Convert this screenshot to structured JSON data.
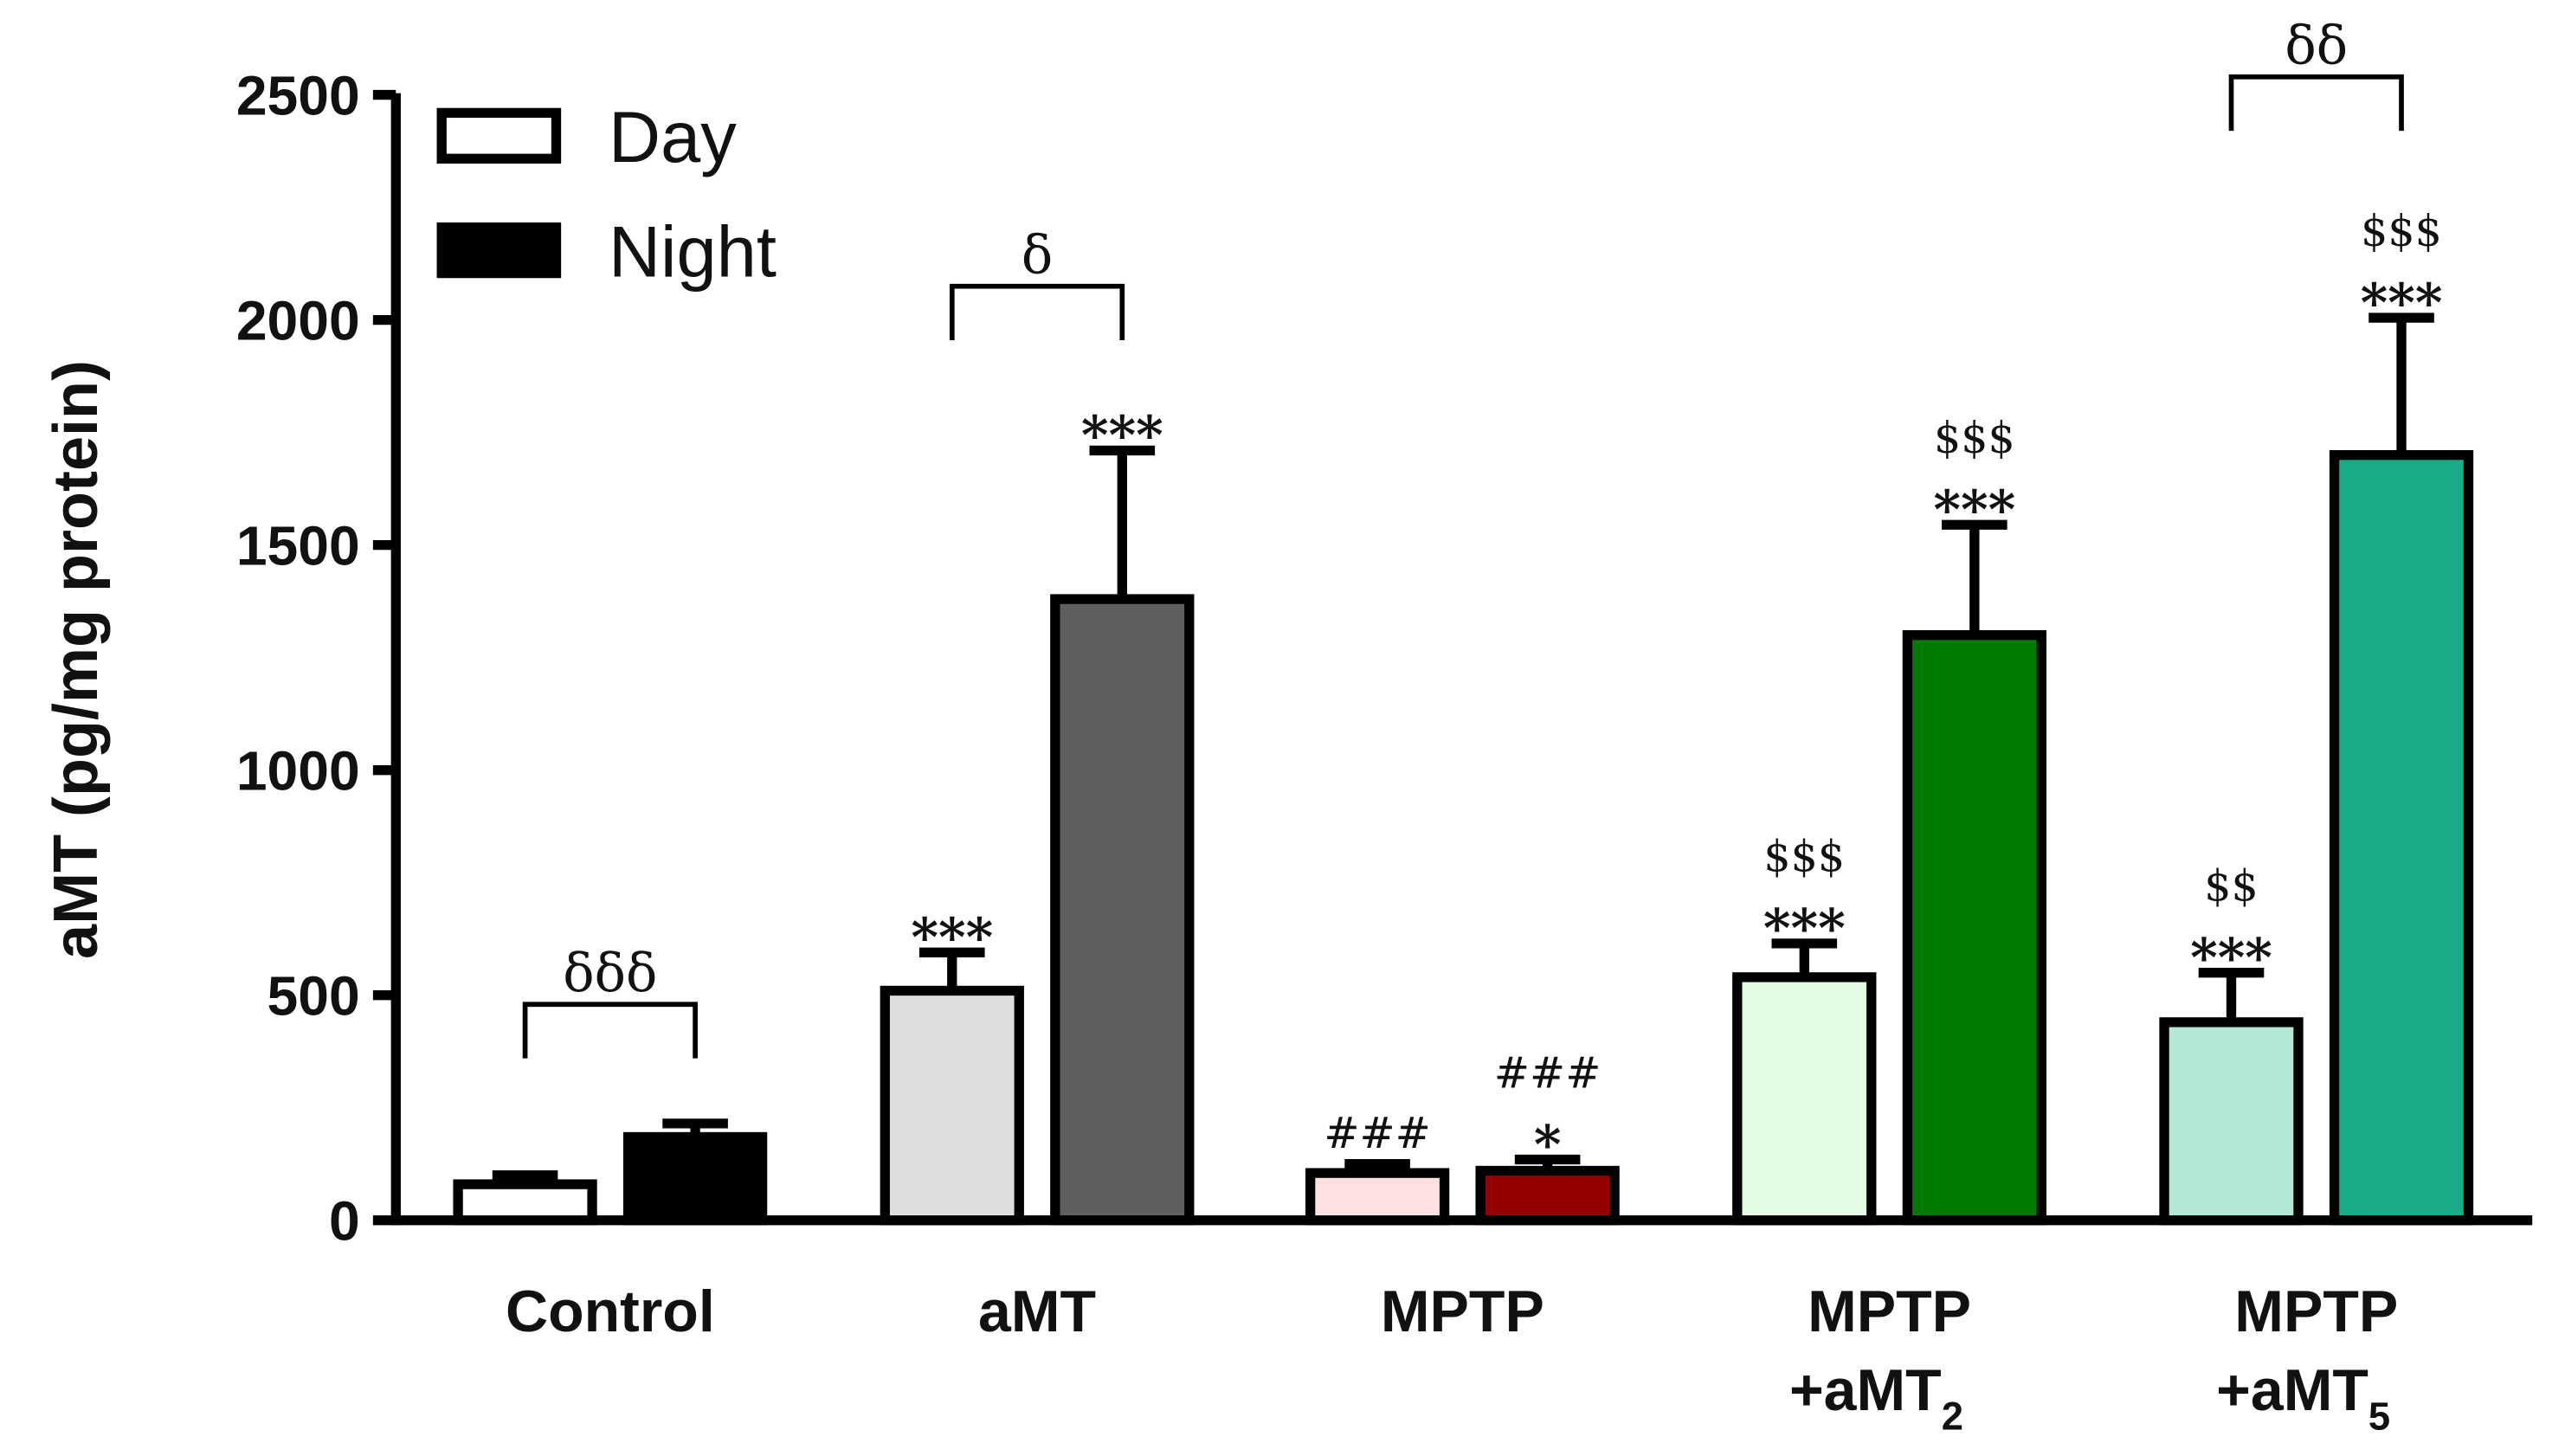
{
  "chart_data": {
    "type": "bar",
    "ylabel": "aMT (pg/mg protein)",
    "ylim": [
      0,
      2500
    ],
    "yticks": [
      "0",
      "500",
      "1000",
      "1500",
      "2000",
      "2500"
    ],
    "ytick_values": [
      0,
      500,
      1000,
      1500,
      2000,
      2500
    ],
    "legend": {
      "placement": "top-left",
      "entries": [
        "Day",
        "Night"
      ]
    },
    "groups": [
      {
        "line1": "Control",
        "line2": "",
        "line2_sub": "",
        "bars": [
          {
            "series": "Day",
            "value": 80,
            "error": 20,
            "color": "#ffffff",
            "marks": []
          },
          {
            "series": "Night",
            "value": 185,
            "error": 30,
            "color": "#000000",
            "marks": []
          }
        ],
        "bracket": "δδδ"
      },
      {
        "line1": "aMT",
        "line2": "",
        "line2_sub": "",
        "bars": [
          {
            "series": "Day",
            "value": 510,
            "error": 85,
            "color": "#dedede",
            "marks": [
              "***"
            ]
          },
          {
            "series": "Night",
            "value": 1380,
            "error": 330,
            "color": "#5f5f5f",
            "marks": [
              "***"
            ]
          }
        ],
        "bracket": "δ"
      },
      {
        "line1": "MPTP",
        "line2": "",
        "line2_sub": "",
        "bars": [
          {
            "series": "Day",
            "value": 105,
            "error": 20,
            "color": "#fde0e0",
            "marks": [
              "###"
            ]
          },
          {
            "series": "Night",
            "value": 110,
            "error": 25,
            "color": "#960000",
            "marks": [
              "###",
              "*"
            ]
          }
        ],
        "bracket": ""
      },
      {
        "line1": "MPTP",
        "line2": "+aMT",
        "line2_sub": "2",
        "bars": [
          {
            "series": "Day",
            "value": 540,
            "error": 75,
            "color": "#e2fbe2",
            "marks": [
              "$$$",
              "***"
            ]
          },
          {
            "series": "Night",
            "value": 1300,
            "error": 245,
            "color": "#007a00",
            "marks": [
              "$$$",
              "***"
            ]
          }
        ],
        "bracket": ""
      },
      {
        "line1": "MPTP",
        "line2": "+aMT",
        "line2_sub": "5",
        "bars": [
          {
            "series": "Day",
            "value": 440,
            "error": 110,
            "color": "#b3e8d8",
            "marks": [
              "$$",
              "***"
            ]
          },
          {
            "series": "Night",
            "value": 1700,
            "error": 305,
            "color": "#18ac88",
            "marks": [
              "$$$",
              "***"
            ]
          }
        ],
        "bracket": "δδ"
      }
    ]
  }
}
